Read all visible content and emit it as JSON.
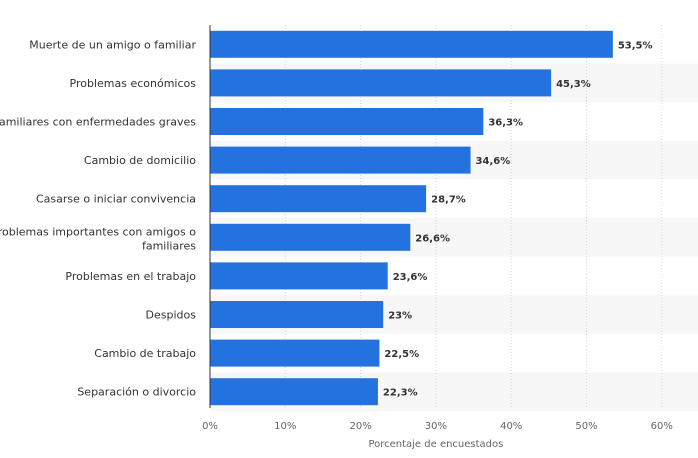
{
  "chart_data": {
    "type": "bar",
    "orientation": "horizontal",
    "categories": [
      "Muerte de un amigo o familiar",
      "Problemas económicos",
      "Familiares con enfermedades graves",
      "Cambio de domicilio",
      "Casarse o iniciar convivencia",
      "Problemas importantes con amigos o familiares",
      "Problemas en el trabajo",
      "Despidos",
      "Cambio de trabajo",
      "Separación o divorcio"
    ],
    "values": [
      53.5,
      45.3,
      36.3,
      34.6,
      28.7,
      26.6,
      23.6,
      23,
      22.5,
      22.3
    ],
    "value_labels": [
      "53,5%",
      "45,3%",
      "36,3%",
      "34,6%",
      "28,7%",
      "26,6%",
      "23,6%",
      "23%",
      "22,5%",
      "22,3%"
    ],
    "xlabel": "Porcentaje de encuestados",
    "xlim": [
      0,
      60
    ],
    "xticks": [
      0,
      10,
      20,
      30,
      40,
      50,
      60
    ],
    "xtick_labels": [
      "0%",
      "10%",
      "20%",
      "30%",
      "40%",
      "50%",
      "60%"
    ],
    "grid": "vertical dotted",
    "bar_color": "#2372e0"
  }
}
